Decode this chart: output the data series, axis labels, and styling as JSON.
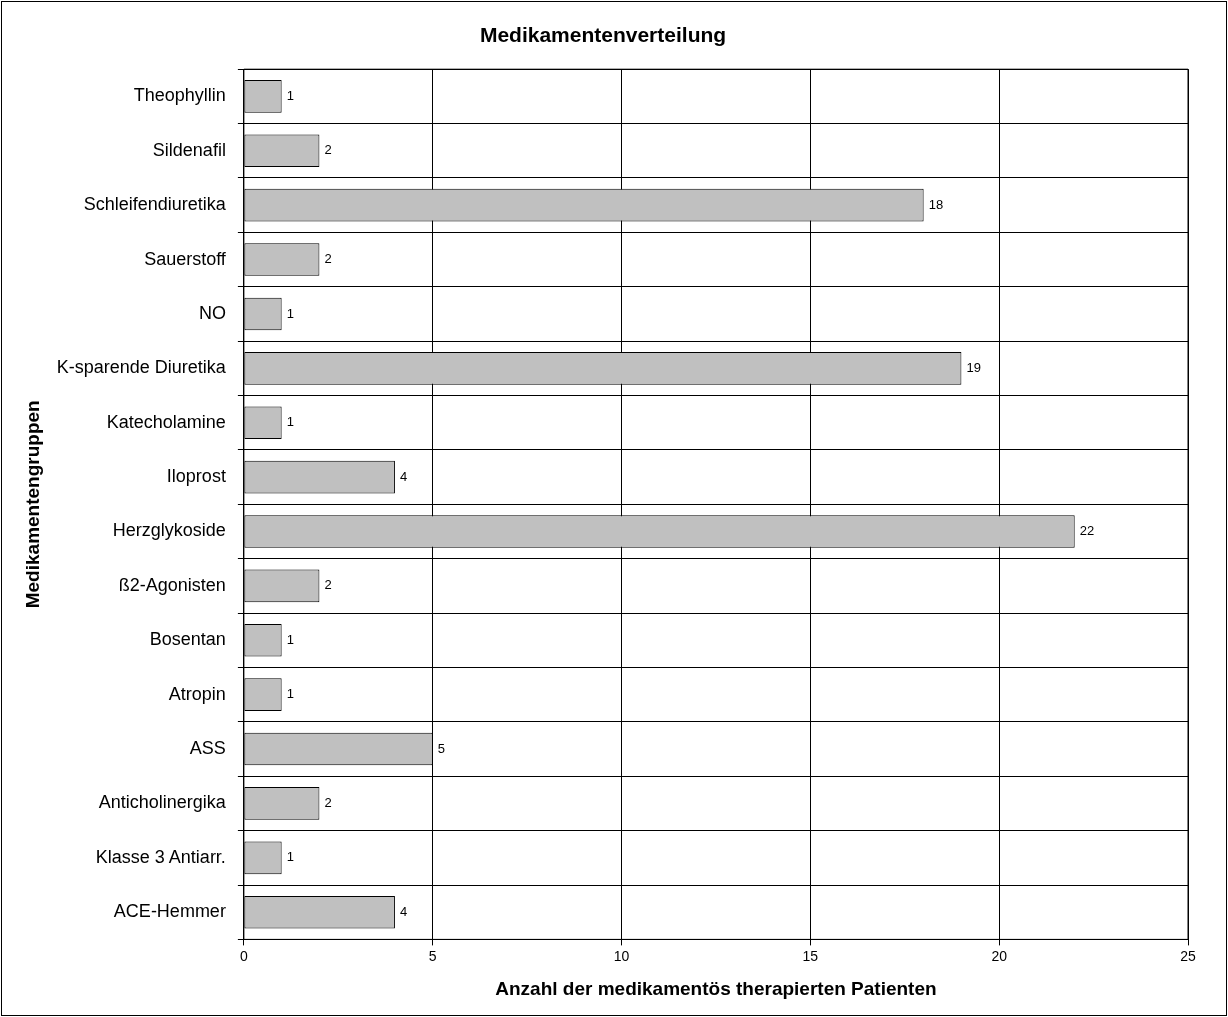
{
  "chart_data": {
    "type": "bar",
    "orientation": "horizontal",
    "title": "Medikamentenverteilung",
    "xlabel": "Anzahl der medikamentös therapierten Patienten",
    "ylabel": "Medikamentengruppen",
    "categories": [
      "Theophyllin",
      "Sildenafil",
      "Schleifendiuretika",
      "Sauerstoff",
      "NO",
      "K-sparende Diuretika",
      "Katecholamine",
      "Iloprost",
      "Herzglykoside",
      "ß2-Agonisten",
      "Bosentan",
      "Atropin",
      "ASS",
      "Anticholinergika",
      "Klasse 3 Antiarr.",
      "ACE-Hemmer"
    ],
    "values": [
      1,
      2,
      18,
      2,
      1,
      19,
      1,
      4,
      22,
      2,
      1,
      1,
      5,
      2,
      1,
      4
    ],
    "color": "#c0c0c0",
    "xlim": [
      0,
      25
    ],
    "xticks": [
      0,
      5,
      10,
      15,
      20,
      25
    ],
    "grid": true,
    "data_labels": true
  }
}
